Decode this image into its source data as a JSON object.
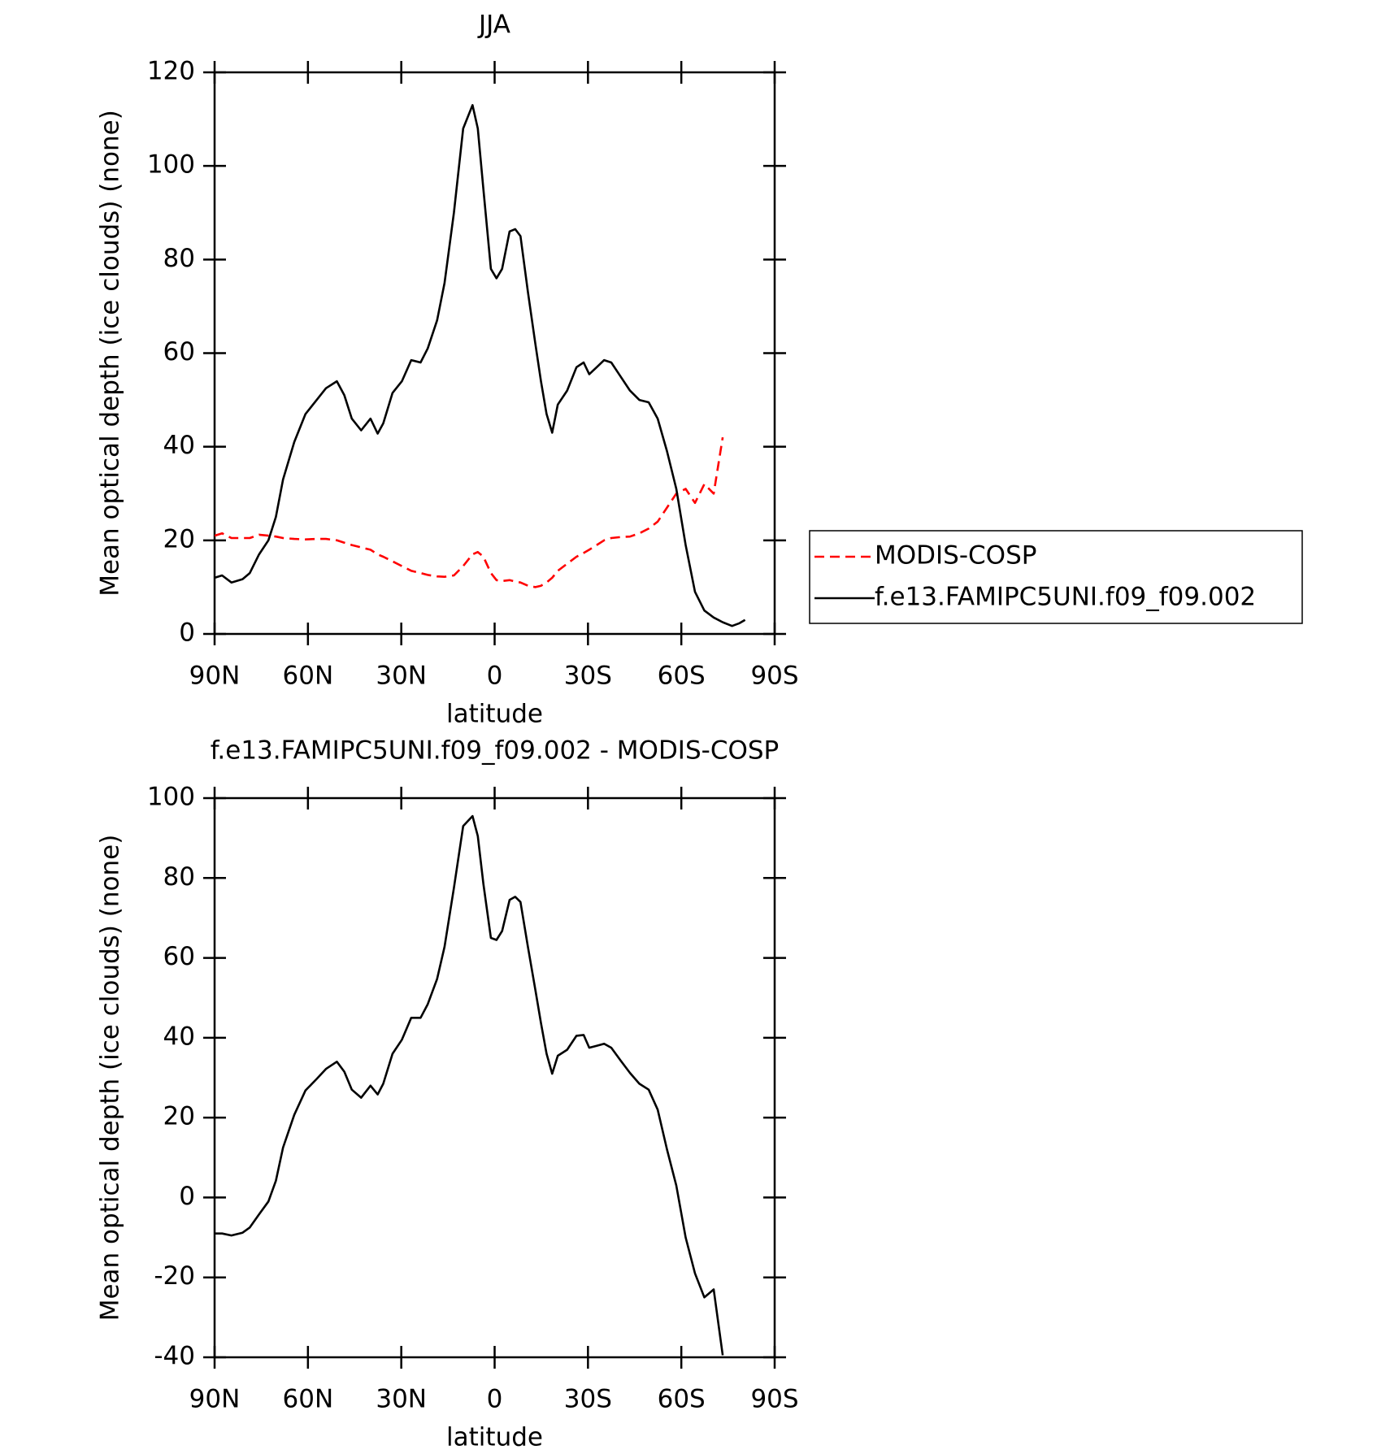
{
  "chart_data": [
    {
      "type": "line",
      "title": "JJA",
      "xlabel": "latitude",
      "ylabel": "Mean optical depth (ice clouds) (none)",
      "x": [
        90,
        87.6,
        84.6,
        81,
        78.7,
        75.7,
        72.7,
        70.3,
        68,
        64.4,
        60.8,
        57.2,
        54.2,
        50.7,
        48.3,
        45.9,
        42.9,
        39.9,
        37.6,
        35.8,
        32.8,
        29.8,
        26.8,
        23.8,
        21.5,
        18.5,
        16.1,
        13.1,
        10.1,
        7.1,
        5.4,
        3.6,
        1.2,
        -0.6,
        -2.4,
        -4.8,
        -6.6,
        -8.3,
        -10.7,
        -13.1,
        -14.9,
        -16.7,
        -18.5,
        -20.3,
        -23.3,
        -26.3,
        -28.6,
        -30.4,
        -32.8,
        -35.2,
        -37.5,
        -40.5,
        -43.5,
        -46.5,
        -49.5,
        -52.4,
        -55.4,
        -58.4,
        -61.4,
        -64.4,
        -67.4,
        -70.4,
        -73.3,
        -76.3,
        -78.7,
        -80.5
      ],
      "series": [
        {
          "name": "MODIS-COSP",
          "color": "#ff0000",
          "line_style": "dashed",
          "values": [
            21,
            21.5,
            20.5,
            20.5,
            20.5,
            21.2,
            21,
            20.8,
            20.5,
            20.3,
            20.2,
            20.3,
            20.3,
            20,
            19.5,
            19,
            18.5,
            18,
            17,
            16.5,
            15.5,
            14.5,
            13.5,
            13,
            12.6,
            12.3,
            12.2,
            12.5,
            14.5,
            17,
            17.5,
            16.5,
            13,
            11.5,
            11.3,
            11.5,
            11.2,
            11,
            10.3,
            10,
            10.3,
            11,
            12,
            13.5,
            15,
            16.5,
            17.3,
            18,
            19,
            20,
            20.5,
            20.7,
            20.8,
            21.5,
            22.5,
            24,
            27,
            30,
            31,
            28,
            32,
            30,
            42,
            null,
            null,
            null
          ]
        },
        {
          "name": "f.e13.FAMIPC5UNI.f09_f09.002",
          "color": "#000000",
          "line_style": "solid",
          "values": [
            12,
            12.5,
            11,
            11.7,
            13,
            17,
            20,
            25,
            33,
            41,
            47,
            50,
            52.5,
            54,
            51,
            46,
            43.5,
            46,
            42.8,
            45,
            51.5,
            54,
            58.5,
            58,
            61,
            67,
            75,
            90,
            108,
            113,
            108,
            95,
            78,
            76,
            78,
            86,
            86.5,
            85,
            73,
            62,
            54,
            47,
            43,
            49,
            52,
            57,
            58,
            55.5,
            57,
            58.5,
            58,
            55,
            52,
            50,
            49.5,
            46,
            39,
            31,
            19,
            9,
            5,
            3.5,
            2.5,
            1.7,
            2.3,
            3
          ]
        }
      ],
      "xlim": [
        90,
        -90
      ],
      "xticks": [
        {
          "value": 90,
          "label": "90N"
        },
        {
          "value": 60,
          "label": "60N"
        },
        {
          "value": 30,
          "label": "30N"
        },
        0,
        {
          "value": -30,
          "label": "30S"
        },
        {
          "value": -60,
          "label": "60S"
        },
        {
          "value": -90,
          "label": "90S"
        }
      ],
      "ylim": [
        0,
        120
      ],
      "yticks": [
        0,
        20,
        40,
        60,
        80,
        100,
        120
      ],
      "legend": "right"
    },
    {
      "type": "line",
      "title": "f.e13.FAMIPC5UNI.f09_f09.002 - MODIS-COSP",
      "xlabel": "latitude",
      "ylabel": "Mean optical depth (ice clouds) (none)",
      "x": [
        90,
        87.6,
        84.6,
        81,
        78.7,
        75.7,
        72.7,
        70.3,
        68,
        64.4,
        60.8,
        57.2,
        54.2,
        50.7,
        48.3,
        45.9,
        42.9,
        39.9,
        37.6,
        35.8,
        32.8,
        29.8,
        26.8,
        23.8,
        21.5,
        18.5,
        16.1,
        13.1,
        10.1,
        7.1,
        5.4,
        3.6,
        1.2,
        -0.6,
        -2.4,
        -4.8,
        -6.6,
        -8.3,
        -10.7,
        -13.1,
        -14.9,
        -16.7,
        -18.5,
        -20.3,
        -23.3,
        -26.3,
        -28.6,
        -30.4,
        -32.8,
        -35.2,
        -37.5,
        -40.5,
        -43.5,
        -46.5,
        -49.5,
        -52.4,
        -55.4,
        -58.4,
        -61.4,
        -64.4,
        -67.4,
        -70.4,
        -73.3
      ],
      "series": [
        {
          "color": "#000000",
          "line_style": "solid",
          "values": [
            -9,
            -9,
            -9.5,
            -8.8,
            -7.5,
            -4.2,
            -1,
            4.2,
            12.5,
            20.7,
            26.8,
            29.7,
            32.2,
            34,
            31.5,
            27,
            25,
            28,
            25.8,
            28.5,
            36,
            39.5,
            45,
            45,
            48.4,
            54.7,
            62.8,
            77.5,
            93,
            95.5,
            90.5,
            78.5,
            65,
            64.5,
            66.7,
            74.5,
            75.3,
            74,
            62.7,
            52,
            43.7,
            36,
            31,
            35.5,
            37,
            40.5,
            40.7,
            37.5,
            38,
            38.5,
            37.5,
            34.3,
            31.2,
            28.5,
            27,
            22,
            12,
            3,
            -10,
            -19,
            -25,
            -23,
            -39.5
          ]
        }
      ],
      "xlim": [
        90,
        -90
      ],
      "xticks": [
        {
          "value": 90,
          "label": "90N"
        },
        {
          "value": 60,
          "label": "60N"
        },
        {
          "value": 30,
          "label": "30N"
        },
        0,
        {
          "value": -30,
          "label": "30S"
        },
        {
          "value": -60,
          "label": "60S"
        },
        {
          "value": -90,
          "label": "90S"
        }
      ],
      "ylim": [
        -40,
        100
      ],
      "yticks": [
        -40,
        -20,
        0,
        20,
        40,
        60,
        80,
        100
      ]
    }
  ]
}
